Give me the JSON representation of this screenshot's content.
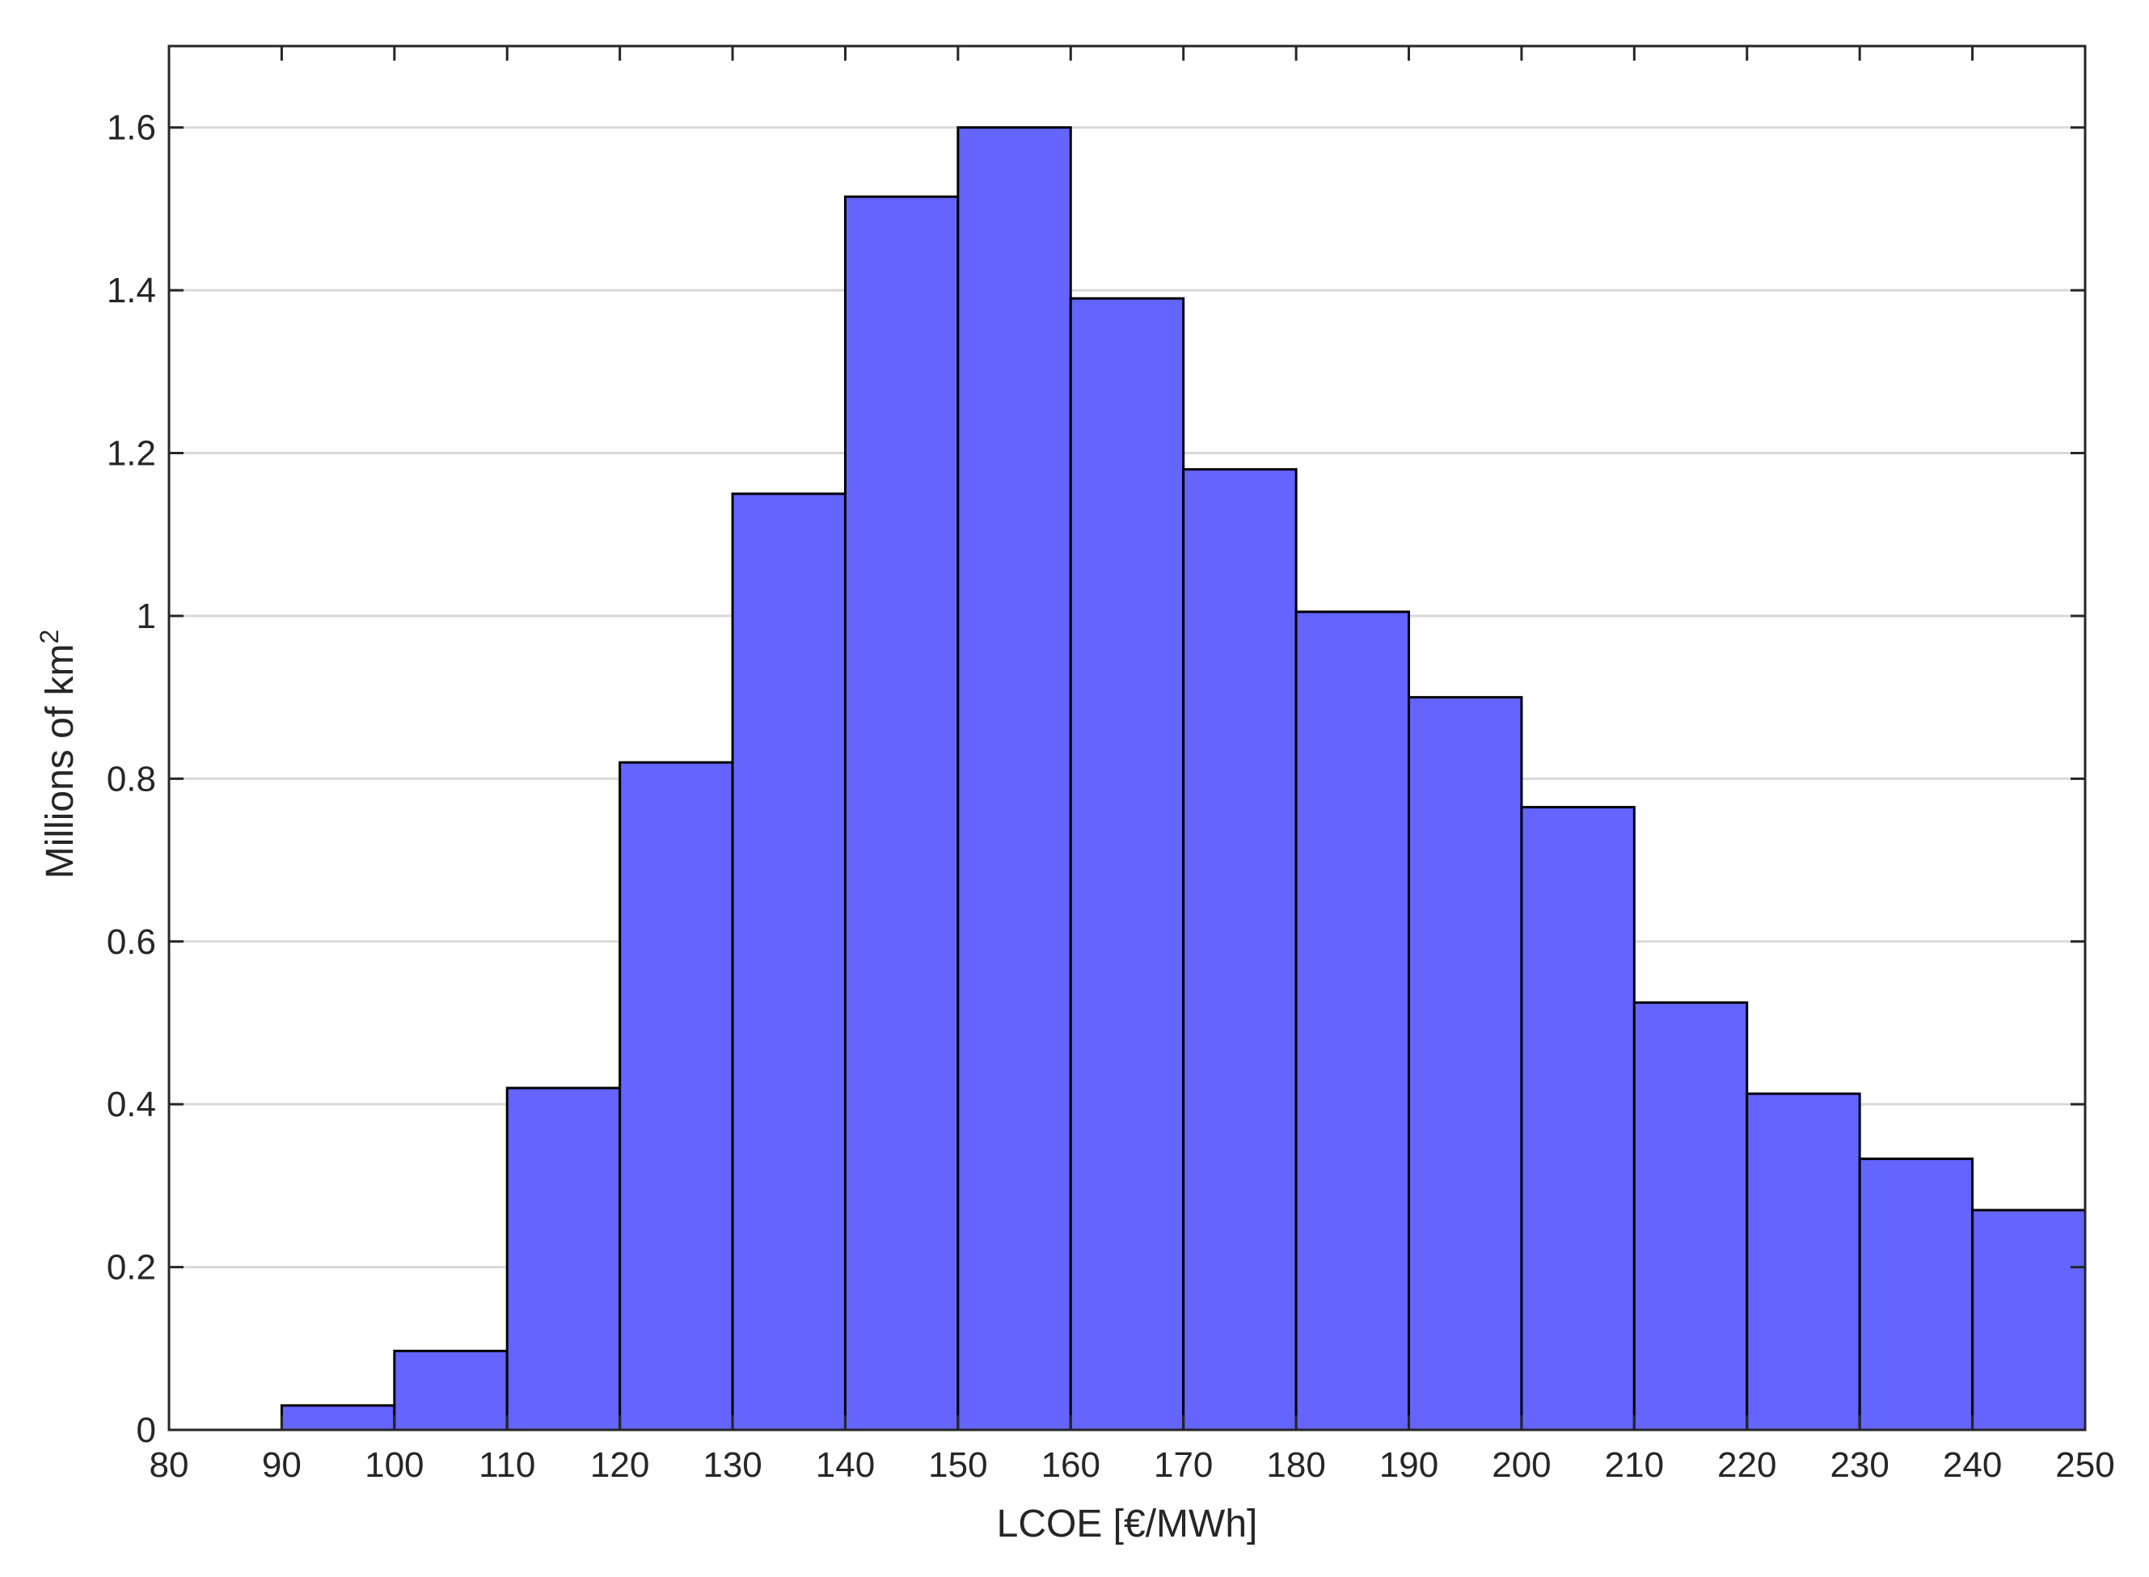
{
  "chart_data": {
    "type": "bar",
    "title": "",
    "xlabel": "LCOE [€/MWh]",
    "ylabel_main": "Millions of km",
    "ylabel_sup": "2",
    "xlim": [
      80,
      250
    ],
    "ylim": [
      0,
      1.7
    ],
    "xticks": [
      80,
      90,
      100,
      110,
      120,
      130,
      140,
      150,
      160,
      170,
      180,
      190,
      200,
      210,
      220,
      230,
      240,
      250
    ],
    "yticks": [
      0,
      0.2,
      0.4,
      0.6,
      0.8,
      1,
      1.2,
      1.4,
      1.6
    ],
    "ytick_labels": [
      "0",
      "0.2",
      "0.4",
      "0.6",
      "0.8",
      "1",
      "1.2",
      "1.4",
      "1.6"
    ],
    "bins": [
      {
        "x0": 90,
        "x1": 100,
        "value": 0.03
      },
      {
        "x0": 100,
        "x1": 110,
        "value": 0.097
      },
      {
        "x0": 110,
        "x1": 120,
        "value": 0.42
      },
      {
        "x0": 120,
        "x1": 130,
        "value": 0.82
      },
      {
        "x0": 130,
        "x1": 140,
        "value": 1.15
      },
      {
        "x0": 140,
        "x1": 150,
        "value": 1.515
      },
      {
        "x0": 150,
        "x1": 160,
        "value": 1.6
      },
      {
        "x0": 160,
        "x1": 170,
        "value": 1.39
      },
      {
        "x0": 170,
        "x1": 180,
        "value": 1.18
      },
      {
        "x0": 180,
        "x1": 190,
        "value": 1.005
      },
      {
        "x0": 190,
        "x1": 200,
        "value": 0.9
      },
      {
        "x0": 200,
        "x1": 210,
        "value": 0.765
      },
      {
        "x0": 210,
        "x1": 220,
        "value": 0.525
      },
      {
        "x0": 220,
        "x1": 230,
        "value": 0.413
      },
      {
        "x0": 230,
        "x1": 240,
        "value": 0.333
      },
      {
        "x0": 240,
        "x1": 250,
        "value": 0.27
      }
    ],
    "grid": {
      "y": true,
      "x": false
    },
    "colors": {
      "bar_fill": "#6464ff",
      "bar_edge": "#000000",
      "grid": "#d9d9d9",
      "axes": "#262626"
    }
  }
}
